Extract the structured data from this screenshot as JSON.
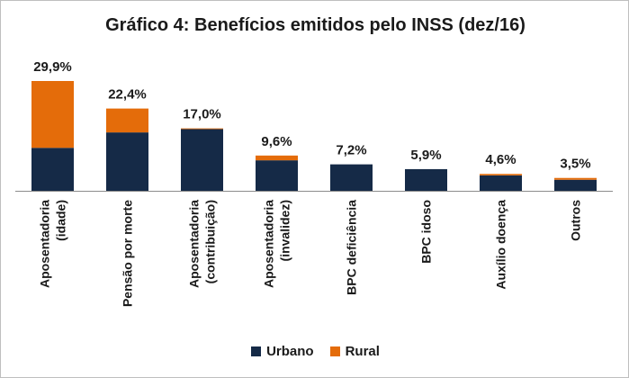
{
  "chart_data": {
    "type": "bar",
    "stacked": true,
    "title": "Gráfico 4: Benefícios emitidos pelo INSS (dez/16)",
    "categories": [
      [
        "Aposentadoria",
        "(idade)"
      ],
      [
        "Pensão por morte"
      ],
      [
        "Aposentadoria",
        "(contribuição)"
      ],
      [
        "Aposentadoria",
        "(invalidez)"
      ],
      [
        "BPC deficiência"
      ],
      [
        "BPC idoso"
      ],
      [
        "Auxílio doença"
      ],
      [
        "Outros"
      ]
    ],
    "total_labels": [
      "29,9%",
      "22,4%",
      "17,0%",
      "9,6%",
      "7,2%",
      "5,9%",
      "4,6%",
      "3,5%"
    ],
    "series": [
      {
        "name": "Urbano",
        "color": "#152a47",
        "values": [
          11.7,
          15.9,
          16.8,
          8.3,
          7.2,
          5.9,
          4.2,
          3.0
        ]
      },
      {
        "name": "Rural",
        "color": "#e46c0a",
        "values": [
          18.2,
          6.5,
          0.2,
          1.3,
          0.0,
          0.0,
          0.4,
          0.5
        ]
      }
    ],
    "ylim": [
      0,
      29.9
    ],
    "xlabel": "",
    "ylabel": "",
    "legend_position": "bottom",
    "grid": false
  }
}
